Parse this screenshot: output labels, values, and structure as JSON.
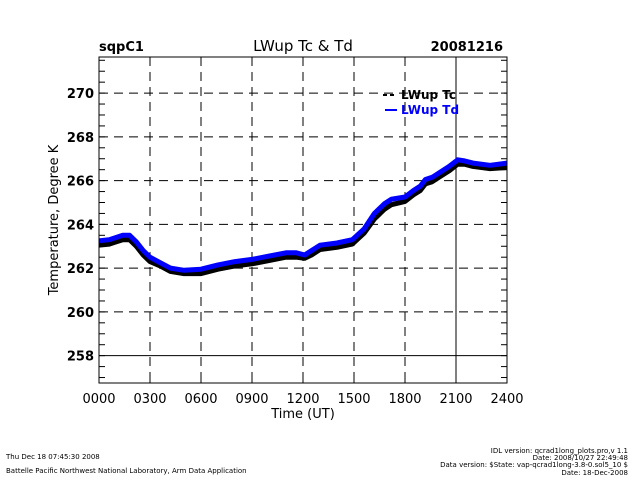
{
  "chart_data": {
    "type": "line",
    "title": "LWup Tc & Td",
    "site": "sqpC1",
    "date": "20081216",
    "xlabel": "Time (UT)",
    "ylabel": "Temperature, Degree K",
    "xlim": [
      0,
      24
    ],
    "ylim": [
      256.75,
      271.65
    ],
    "x_ticks": [
      0,
      3,
      6,
      9,
      12,
      15,
      18,
      21,
      24
    ],
    "x_tick_labels": [
      "0000",
      "0300",
      "0600",
      "0900",
      "1200",
      "1500",
      "1800",
      "2100",
      "2400"
    ],
    "y_ticks": [
      258,
      260,
      262,
      264,
      266,
      268,
      270
    ],
    "y_tick_labels": [
      "258",
      "260",
      "262",
      "264",
      "266",
      "268",
      "270"
    ],
    "grid": true,
    "legend_position": "top-right",
    "series": [
      {
        "name": "LWup Tc",
        "color": "#000000",
        "x": [
          0,
          0.6,
          1.0,
          1.4,
          1.8,
          2.2,
          2.6,
          3.0,
          3.6,
          4.2,
          5.0,
          6.0,
          7.0,
          8.0,
          9.0,
          10.0,
          11.0,
          11.6,
          12.1,
          12.5,
          13.0,
          14.0,
          14.9,
          15.6,
          16.2,
          16.8,
          17.2,
          18.0,
          18.5,
          18.9,
          19.2,
          19.6,
          20.1,
          20.6,
          21.1,
          21.5,
          22.0,
          23.0,
          24.0
        ],
        "values": [
          263.05,
          263.1,
          263.2,
          263.3,
          263.3,
          263.0,
          262.6,
          262.3,
          262.1,
          261.85,
          261.75,
          261.75,
          261.95,
          262.1,
          262.2,
          262.35,
          262.5,
          262.5,
          262.45,
          262.6,
          262.85,
          262.95,
          263.1,
          263.6,
          264.25,
          264.7,
          264.9,
          265.05,
          265.35,
          265.55,
          265.85,
          265.95,
          266.2,
          266.45,
          266.75,
          266.75,
          266.65,
          266.55,
          266.6
        ]
      },
      {
        "name": "LWup Td",
        "color": "#0000ff",
        "x": [
          0,
          0.6,
          1.0,
          1.4,
          1.8,
          2.2,
          2.6,
          3.0,
          3.6,
          4.2,
          5.0,
          6.0,
          7.0,
          8.0,
          9.0,
          10.0,
          11.0,
          11.6,
          12.1,
          12.5,
          13.0,
          14.0,
          14.9,
          15.6,
          16.2,
          16.8,
          17.2,
          18.0,
          18.5,
          18.9,
          19.2,
          19.6,
          20.1,
          20.6,
          21.1,
          21.5,
          22.0,
          23.0,
          24.0
        ],
        "values": [
          263.25,
          263.3,
          263.4,
          263.5,
          263.5,
          263.2,
          262.8,
          262.5,
          262.25,
          262.0,
          261.9,
          261.95,
          262.15,
          262.3,
          262.4,
          262.55,
          262.7,
          262.7,
          262.6,
          262.8,
          263.05,
          263.15,
          263.3,
          263.8,
          264.5,
          264.95,
          265.15,
          265.25,
          265.55,
          265.75,
          266.05,
          266.15,
          266.4,
          266.65,
          266.95,
          266.9,
          266.8,
          266.7,
          266.8
        ]
      }
    ],
    "solid_lines": {
      "x": [
        21
      ],
      "y": [
        258
      ]
    }
  },
  "footer": {
    "timestamp": "Thu Dec 18 07:45:30 2008",
    "organization": "Battelle Pacific Northwest National Laboratory, Arm Data Application",
    "idl_version": "IDL version: qcrad1long_plots.pro,v 1.1",
    "idl_date": "Date: 2008/10/27 22:49:48",
    "data_version": "Data version: $State: vap-qcrad1long-3.8-0.sol5_10 $",
    "data_date": "Date: 18-Dec-2008"
  }
}
